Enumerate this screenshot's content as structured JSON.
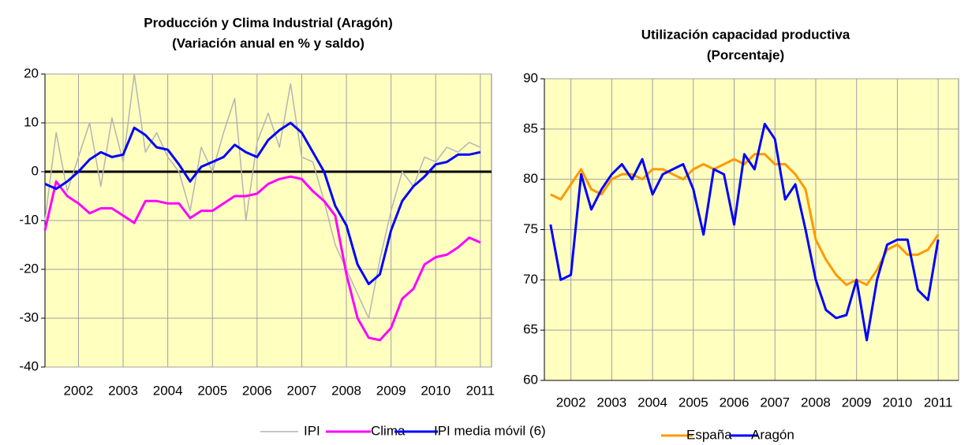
{
  "chart_data": [
    {
      "type": "line",
      "title": "Producción y Clima Industrial (Aragón)",
      "subtitle": "(Variación anual en % y saldo)",
      "x": [
        2001.75,
        2002,
        2002.25,
        2002.5,
        2002.75,
        2003,
        2003.25,
        2003.5,
        2003.75,
        2004,
        2004.25,
        2004.5,
        2004.75,
        2005,
        2005.25,
        2005.5,
        2005.75,
        2006,
        2006.25,
        2006.5,
        2006.75,
        2007,
        2007.25,
        2007.5,
        2007.75,
        2008,
        2008.25,
        2008.5,
        2008.75,
        2009,
        2009.25,
        2009.5,
        2009.75,
        2010,
        2010.25,
        2010.5,
        2010.75,
        2011,
        2011.25,
        2011.5
      ],
      "series": [
        {
          "name": "IPI",
          "color": "#b4b4b4",
          "values": [
            -10,
            8,
            -4,
            3,
            10,
            -3,
            11,
            2,
            20,
            4,
            8,
            3,
            0,
            -8,
            5,
            0,
            8,
            15,
            -10,
            6,
            12,
            5,
            18,
            3,
            2,
            -6,
            -15,
            -20,
            -25,
            -30,
            -18,
            -8,
            0,
            -3,
            3,
            2,
            5,
            4,
            6,
            5
          ]
        },
        {
          "name": "Clima",
          "color": "#ff00ff",
          "values": [
            -12,
            -2,
            -5,
            -6.5,
            -8.5,
            -7.5,
            -7.5,
            -9,
            -10.5,
            -6,
            -6,
            -6.5,
            -6.5,
            -9.5,
            -8,
            -8,
            -6.5,
            -5,
            -5,
            -4.5,
            -2.5,
            -1.5,
            -1,
            -1.5,
            -4,
            -6,
            -9,
            -21,
            -30,
            -34,
            -34.5,
            -32,
            -26,
            -24,
            -19,
            -17.5,
            -17,
            -15.5,
            -13.5,
            -14.5
          ]
        },
        {
          "name": "IPI media móvil (6)",
          "color": "#0000ff",
          "values": [
            -2.5,
            -3.5,
            -2,
            0,
            2.5,
            4,
            3,
            3.5,
            9,
            7.5,
            5,
            4.5,
            1.5,
            -2,
            1,
            2,
            3,
            5.5,
            4,
            3,
            6.5,
            8.5,
            10,
            8,
            4,
            0,
            -7,
            -11,
            -19,
            -23,
            -21,
            -12,
            -6,
            -3,
            -1,
            1.5,
            2,
            3.5,
            3.5,
            4
          ]
        }
      ],
      "xlim": [
        2001.75,
        2011.75
      ],
      "xticks": [
        {
          "value": 2002.5,
          "label": "2002"
        },
        {
          "value": 2003.5,
          "label": "2003"
        },
        {
          "value": 2004.5,
          "label": "2004"
        },
        {
          "value": 2005.5,
          "label": "2005"
        },
        {
          "value": 2006.5,
          "label": "2006"
        },
        {
          "value": 2007.5,
          "label": "2007"
        },
        {
          "value": 2008.5,
          "label": "2008"
        },
        {
          "value": 2009.5,
          "label": "2009"
        },
        {
          "value": 2010.5,
          "label": "2010"
        },
        {
          "value": 2011.5,
          "label": "2011"
        }
      ],
      "ylim": [
        -40,
        20
      ],
      "yticks": [
        -40,
        -30,
        -20,
        -10,
        0,
        10,
        20
      ],
      "grid": true,
      "legend": "bottom"
    },
    {
      "type": "line",
      "title": "Utilización capacidad productiva",
      "subtitle": "(Porcentaje)",
      "x": [
        2002,
        2002.25,
        2002.5,
        2002.75,
        2003,
        2003.25,
        2003.5,
        2003.75,
        2004,
        2004.25,
        2004.5,
        2004.75,
        2005,
        2005.25,
        2005.5,
        2005.75,
        2006,
        2006.25,
        2006.5,
        2006.75,
        2007,
        2007.25,
        2007.5,
        2007.75,
        2008,
        2008.25,
        2008.5,
        2008.75,
        2009,
        2009.25,
        2009.5,
        2009.75,
        2010,
        2010.25,
        2010.5,
        2010.75,
        2011,
        2011.25,
        2011.5
      ],
      "series": [
        {
          "name": "España",
          "color": "#ff9900",
          "values": [
            78.5,
            78,
            79.5,
            81,
            79,
            78.5,
            80,
            80.5,
            80.5,
            80,
            81,
            81,
            80.5,
            80,
            81,
            81.5,
            81,
            81.5,
            82,
            81.5,
            82.5,
            82.5,
            81.5,
            81.5,
            80.5,
            79,
            74,
            72,
            70.5,
            69.5,
            70,
            69.5,
            71,
            73,
            73.5,
            72.5,
            72.5,
            73,
            74.5
          ]
        },
        {
          "name": "Aragón",
          "color": "#0000ff",
          "values": [
            75.5,
            70,
            70.5,
            80.5,
            77,
            79,
            80.5,
            81.5,
            80,
            82,
            78.5,
            80.5,
            81,
            81.5,
            79,
            74.5,
            81,
            80.5,
            75.5,
            82.5,
            81,
            85.5,
            84,
            78,
            79.5,
            75,
            70,
            67,
            66.2,
            66.5,
            70,
            64,
            70,
            73.5,
            74,
            74,
            69,
            68,
            74
          ]
        }
      ],
      "xlim": [
        2001.85,
        2012.0
      ],
      "xticks": [
        {
          "value": 2002.5,
          "label": "2002"
        },
        {
          "value": 2003.5,
          "label": "2003"
        },
        {
          "value": 2004.5,
          "label": "2004"
        },
        {
          "value": 2005.5,
          "label": "2005"
        },
        {
          "value": 2006.5,
          "label": "2006"
        },
        {
          "value": 2007.5,
          "label": "2007"
        },
        {
          "value": 2008.5,
          "label": "2008"
        },
        {
          "value": 2009.5,
          "label": "2009"
        },
        {
          "value": 2010.5,
          "label": "2010"
        },
        {
          "value": 2011.5,
          "label": "2011"
        }
      ],
      "ylim": [
        60,
        90
      ],
      "yticks": [
        60,
        65,
        70,
        75,
        80,
        85,
        90
      ],
      "grid": true,
      "legend": "bottom"
    }
  ]
}
